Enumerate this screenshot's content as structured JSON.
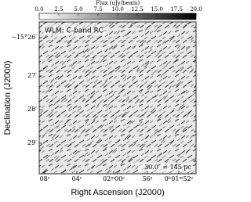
{
  "chart_data": {
    "type": "image",
    "title": "WLM: C-band RC",
    "annotation": "30.0″ = 145 pc",
    "colorbar": {
      "label": "Flux (uJy/beam)",
      "xlim": [
        0,
        20
      ],
      "xticks": [
        {
          "value": 0,
          "label": "0.0"
        },
        {
          "value": 2.5,
          "label": "2.5"
        },
        {
          "value": 5,
          "label": "5.0"
        },
        {
          "value": 7.5,
          "label": "7.5"
        },
        {
          "value": 10,
          "label": "10.0"
        },
        {
          "value": 12.5,
          "label": "12.5"
        },
        {
          "value": 15,
          "label": "15.0"
        },
        {
          "value": 17.5,
          "label": "17.5"
        },
        {
          "value": 20,
          "label": "20.0"
        }
      ],
      "colors": [
        "#ffffff",
        "#000000"
      ]
    },
    "x_label": "Right Ascension (J2000)",
    "y_label": "Declination (J2000)",
    "x_tick_labels": [
      "08ˢ",
      "04ˢ",
      "02ᵐ00ˢ",
      "56ˢ",
      "0ʰ01ᵐ52ˢ"
    ],
    "y_tick_labels": [
      "−15°26′",
      "27′",
      "28′",
      "29′"
    ]
  }
}
